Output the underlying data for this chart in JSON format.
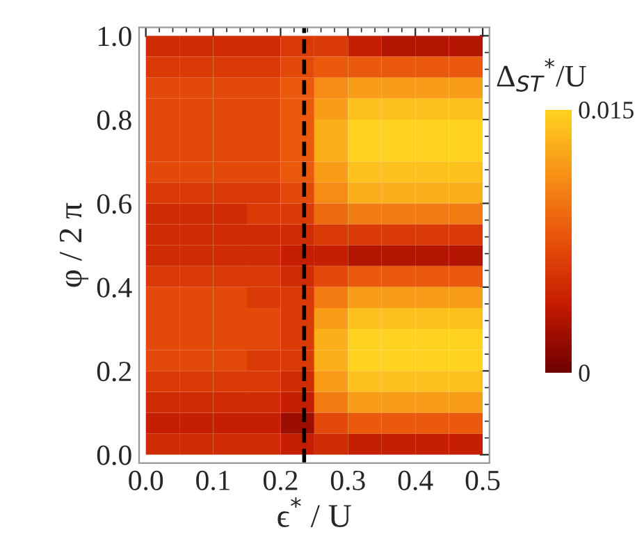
{
  "chart_data": {
    "type": "heatmap",
    "xlabel": "ϵ$^{*}$ / U",
    "ylabel": "φ / 2 π",
    "clabel": "Δ$_{ST}$$^{*}$/U",
    "x": [
      0.025,
      0.075,
      0.125,
      0.175,
      0.225,
      0.275,
      0.325,
      0.375,
      0.425,
      0.475
    ],
    "y": [
      0.975,
      0.925,
      0.875,
      0.825,
      0.775,
      0.725,
      0.675,
      0.625,
      0.575,
      0.525,
      0.475,
      0.425,
      0.375,
      0.325,
      0.275,
      0.225,
      0.175,
      0.125,
      0.075,
      0.025
    ],
    "cells": [
      [
        0.005,
        0.005,
        0.005,
        0.005,
        0.006,
        0.006,
        0.004,
        0.003,
        0.003,
        0.003
      ],
      [
        0.006,
        0.006,
        0.006,
        0.006,
        0.007,
        0.008,
        0.008,
        0.008,
        0.008,
        0.008
      ],
      [
        0.007,
        0.007,
        0.007,
        0.007,
        0.008,
        0.011,
        0.012,
        0.012,
        0.012,
        0.012
      ],
      [
        0.007,
        0.007,
        0.007,
        0.007,
        0.008,
        0.012,
        0.014,
        0.014,
        0.014,
        0.014
      ],
      [
        0.007,
        0.007,
        0.007,
        0.007,
        0.008,
        0.013,
        0.015,
        0.015,
        0.015,
        0.015
      ],
      [
        0.007,
        0.007,
        0.007,
        0.007,
        0.008,
        0.013,
        0.015,
        0.015,
        0.015,
        0.015
      ],
      [
        0.007,
        0.007,
        0.007,
        0.007,
        0.008,
        0.012,
        0.014,
        0.014,
        0.014,
        0.014
      ],
      [
        0.006,
        0.006,
        0.006,
        0.006,
        0.007,
        0.011,
        0.013,
        0.013,
        0.013,
        0.013
      ],
      [
        0.005,
        0.005,
        0.005,
        0.006,
        0.006,
        0.009,
        0.01,
        0.01,
        0.01,
        0.01
      ],
      [
        0.005,
        0.005,
        0.005,
        0.005,
        0.005,
        0.006,
        0.006,
        0.006,
        0.006,
        0.006
      ],
      [
        0.005,
        0.005,
        0.005,
        0.005,
        0.004,
        0.004,
        0.003,
        0.003,
        0.003,
        0.003
      ],
      [
        0.006,
        0.006,
        0.006,
        0.006,
        0.005,
        0.007,
        0.008,
        0.008,
        0.008,
        0.008
      ],
      [
        0.007,
        0.007,
        0.007,
        0.006,
        0.006,
        0.01,
        0.012,
        0.012,
        0.012,
        0.012
      ],
      [
        0.007,
        0.007,
        0.007,
        0.007,
        0.006,
        0.012,
        0.014,
        0.014,
        0.014,
        0.014
      ],
      [
        0.007,
        0.007,
        0.007,
        0.007,
        0.006,
        0.013,
        0.015,
        0.015,
        0.015,
        0.015
      ],
      [
        0.007,
        0.007,
        0.007,
        0.006,
        0.006,
        0.013,
        0.015,
        0.015,
        0.015,
        0.015
      ],
      [
        0.006,
        0.006,
        0.006,
        0.006,
        0.005,
        0.012,
        0.014,
        0.014,
        0.014,
        0.014
      ],
      [
        0.005,
        0.005,
        0.005,
        0.005,
        0.004,
        0.01,
        0.012,
        0.012,
        0.012,
        0.012
      ],
      [
        0.004,
        0.004,
        0.004,
        0.004,
        0.002,
        0.007,
        0.008,
        0.008,
        0.008,
        0.008
      ],
      [
        0.005,
        0.005,
        0.005,
        0.005,
        0.004,
        0.005,
        0.004,
        0.004,
        0.004,
        0.004
      ]
    ],
    "clim": [
      0,
      0.015
    ],
    "cticks": [
      0,
      0.015
    ],
    "colors": [
      "#6e0000",
      "#c41a00",
      "#e8500a",
      "#f79016",
      "#ffd320"
    ],
    "xlim": [
      -0.01,
      0.51
    ],
    "ylim": [
      -0.02,
      1.02
    ],
    "xticks": [
      {
        "value": 0,
        "label": "0.0"
      },
      0.1,
      0.2,
      0.3,
      0.4,
      0.5
    ],
    "yticks": [
      {
        "value": 0,
        "label": "0.0"
      },
      0.2,
      0.4,
      0.6,
      0.8,
      {
        "value": 1,
        "label": "1.0"
      }
    ],
    "ref_lines": [
      {
        "axis": "x",
        "value": 0.235,
        "color": "#000000",
        "line_style": "dashed"
      }
    ],
    "grid": false
  }
}
